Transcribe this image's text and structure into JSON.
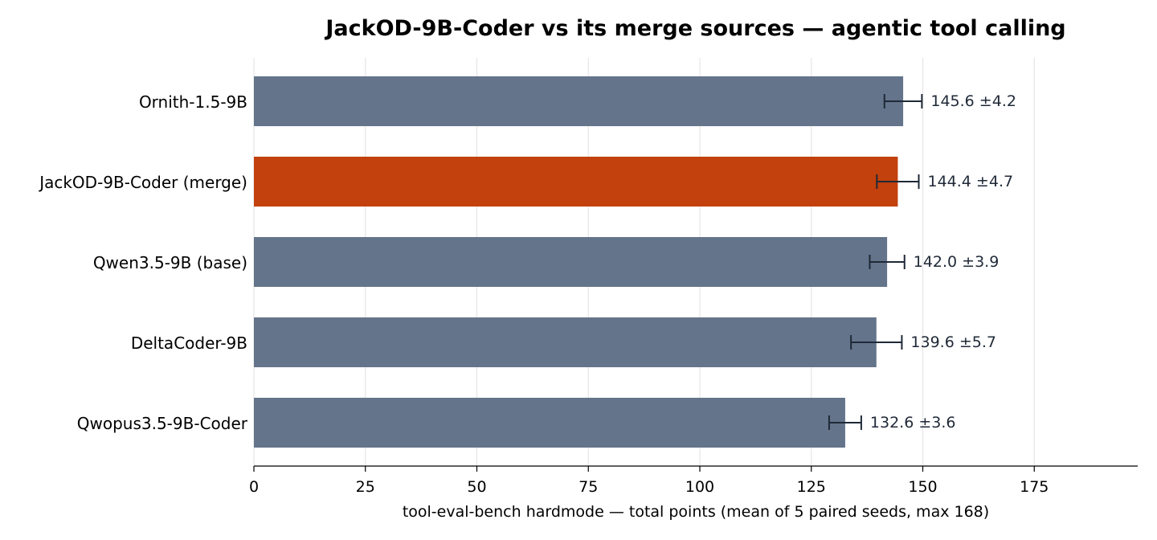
{
  "chart_data": {
    "type": "bar",
    "orientation": "horizontal",
    "title": "JackOD-9B-Coder vs its merge sources — agentic tool calling",
    "xlabel": "tool-eval-bench hardmode — total points (mean of 5 paired seeds, max 168)",
    "ylabel": "",
    "xlim": [
      0,
      198
    ],
    "xticks": [
      0,
      25,
      50,
      75,
      100,
      125,
      150,
      175
    ],
    "grid": true,
    "categories": [
      "Ornith-1.5-9B",
      "JackOD-9B-Coder (merge)",
      "Qwen3.5-9B (base)",
      "DeltaCoder-9B",
      "Qwopus3.5-9B-Coder"
    ],
    "values": [
      145.6,
      144.4,
      142.0,
      139.6,
      132.6
    ],
    "errors": [
      4.2,
      4.7,
      3.9,
      5.7,
      3.6
    ],
    "value_labels": [
      "145.6 ±4.2",
      "144.4 ±4.7",
      "142.0 ±3.9",
      "139.6 ±5.7",
      "132.6 ±3.6"
    ],
    "highlight": "JackOD-9B-Coder (merge)",
    "colors": {
      "bar": "#64748b",
      "highlight": "#c2410c",
      "error": "#1f2937",
      "label": "#1f2937",
      "grid": "#e5e5e5",
      "axis": "#000000"
    }
  }
}
